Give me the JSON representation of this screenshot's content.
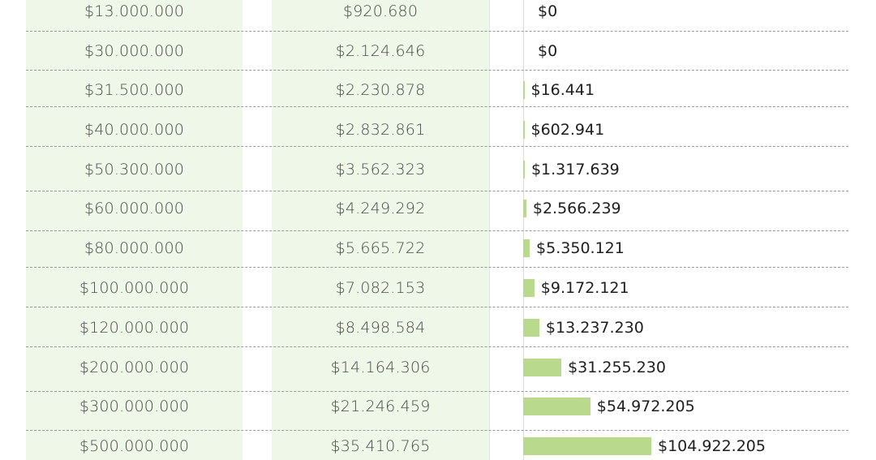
{
  "chart_data": {
    "type": "table",
    "columns": [
      "",
      "",
      ""
    ],
    "rows": [
      {
        "income": "$13.000.000",
        "tax": "$920.680",
        "difference": "$0",
        "difference_value": 0
      },
      {
        "income": "$30.000.000",
        "tax": "$2.124.646",
        "difference": "$0",
        "difference_value": 0
      },
      {
        "income": "$31.500.000",
        "tax": "$2.230.878",
        "difference": "$16.441",
        "difference_value": 16441
      },
      {
        "income": "$40.000.000",
        "tax": "$2.832.861",
        "difference": "$602.941",
        "difference_value": 602941
      },
      {
        "income": "$50.300.000",
        "tax": "$3.562.323",
        "difference": "$1.317.639",
        "difference_value": 1317639
      },
      {
        "income": "$60.000.000",
        "tax": "$4.249.292",
        "difference": "$2.566.239",
        "difference_value": 2566239
      },
      {
        "income": "$80.000.000",
        "tax": "$5.665.722",
        "difference": "$5.350.121",
        "difference_value": 5350121
      },
      {
        "income": "$100.000.000",
        "tax": "$7.082.153",
        "difference": "$9.172.121",
        "difference_value": 9172121
      },
      {
        "income": "$120.000.000",
        "tax": "$8.498.584",
        "difference": "$13.237.230",
        "difference_value": 13237230
      },
      {
        "income": "$200.000.000",
        "tax": "$14.164.306",
        "difference": "$31.255.230",
        "difference_value": 31255230
      },
      {
        "income": "$300.000.000",
        "tax": "$21.246.459",
        "difference": "$54.972.205",
        "difference_value": 54972205
      },
      {
        "income": "$500.000.000",
        "tax": "$35.410.765",
        "difference": "$104.922.205",
        "difference_value": 104922205
      }
    ],
    "bar_max": 104922205,
    "colors": {
      "column_bg": "#eff7e9",
      "bar": "#b9da8c"
    }
  }
}
